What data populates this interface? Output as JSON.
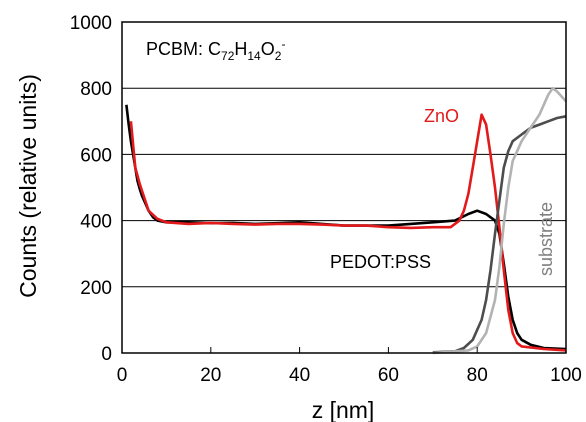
{
  "chart_data": {
    "type": "line",
    "title": "",
    "xlabel": "z [nm]",
    "ylabel": "Counts (relative units)",
    "xlim": [
      0,
      100
    ],
    "ylim": [
      0,
      1000
    ],
    "xticks": [
      0,
      20,
      40,
      60,
      80,
      100
    ],
    "yticks": [
      0,
      200,
      400,
      600,
      800,
      1000
    ],
    "grid": "horizontal",
    "annotations": {
      "species_prefix": "PCBM: C",
      "sub1": "72",
      "mid1": "H",
      "sub2": "14",
      "mid2": "O",
      "sub3": "2",
      "sup": "-",
      "zno_label": "ZnO",
      "pedot_label": "PEDOT:PSS",
      "substrate_label": "substrate"
    },
    "series": [
      {
        "name": "PEDOT:PSS",
        "color": "#000000",
        "points": [
          [
            1,
            750
          ],
          [
            1.5,
            690
          ],
          [
            2,
            640
          ],
          [
            2.5,
            600
          ],
          [
            3,
            560
          ],
          [
            3.5,
            520
          ],
          [
            4,
            495
          ],
          [
            4.5,
            475
          ],
          [
            5,
            460
          ],
          [
            5.5,
            445
          ],
          [
            6,
            430
          ],
          [
            7,
            410
          ],
          [
            8,
            400
          ],
          [
            10,
            395
          ],
          [
            15,
            395
          ],
          [
            20,
            392
          ],
          [
            25,
            393
          ],
          [
            30,
            390
          ],
          [
            35,
            392
          ],
          [
            40,
            395
          ],
          [
            45,
            390
          ],
          [
            50,
            385
          ],
          [
            55,
            385
          ],
          [
            60,
            385
          ],
          [
            65,
            390
          ],
          [
            70,
            395
          ],
          [
            75,
            400
          ],
          [
            78,
            420
          ],
          [
            80,
            430
          ],
          [
            82,
            420
          ],
          [
            84,
            400
          ],
          [
            85,
            360
          ],
          [
            86,
            270
          ],
          [
            87,
            170
          ],
          [
            88,
            100
          ],
          [
            89,
            60
          ],
          [
            90,
            40
          ],
          [
            92,
            25
          ],
          [
            95,
            15
          ],
          [
            100,
            12
          ]
        ]
      },
      {
        "name": "ZnO",
        "color": "#e31a1c",
        "points": [
          [
            2,
            700
          ],
          [
            3,
            560
          ],
          [
            4,
            510
          ],
          [
            5,
            470
          ],
          [
            6,
            430
          ],
          [
            8,
            405
          ],
          [
            10,
            395
          ],
          [
            15,
            390
          ],
          [
            20,
            393
          ],
          [
            25,
            390
          ],
          [
            30,
            388
          ],
          [
            35,
            390
          ],
          [
            40,
            390
          ],
          [
            45,
            388
          ],
          [
            50,
            385
          ],
          [
            55,
            385
          ],
          [
            60,
            380
          ],
          [
            65,
            378
          ],
          [
            70,
            380
          ],
          [
            74,
            380
          ],
          [
            76,
            400
          ],
          [
            77,
            430
          ],
          [
            78,
            480
          ],
          [
            79,
            560
          ],
          [
            80,
            640
          ],
          [
            81,
            720
          ],
          [
            82,
            690
          ],
          [
            83,
            600
          ],
          [
            84,
            500
          ],
          [
            85,
            380
          ],
          [
            86,
            250
          ],
          [
            87,
            130
          ],
          [
            88,
            60
          ],
          [
            89,
            30
          ],
          [
            90,
            20
          ],
          [
            95,
            12
          ],
          [
            100,
            8
          ]
        ]
      },
      {
        "name": "substrate-dark",
        "color": "#4d4d4d",
        "points": [
          [
            70,
            2
          ],
          [
            75,
            5
          ],
          [
            77,
            15
          ],
          [
            79,
            40
          ],
          [
            81,
            100
          ],
          [
            82,
            160
          ],
          [
            83,
            250
          ],
          [
            84,
            360
          ],
          [
            85,
            460
          ],
          [
            86,
            560
          ],
          [
            87,
            610
          ],
          [
            88,
            640
          ],
          [
            90,
            660
          ],
          [
            92,
            680
          ],
          [
            94,
            690
          ],
          [
            96,
            700
          ],
          [
            98,
            710
          ],
          [
            100,
            715
          ]
        ]
      },
      {
        "name": "substrate-light",
        "color": "#b3b3b3",
        "points": [
          [
            70,
            0
          ],
          [
            78,
            8
          ],
          [
            80,
            20
          ],
          [
            82,
            60
          ],
          [
            84,
            160
          ],
          [
            85,
            260
          ],
          [
            86,
            390
          ],
          [
            87,
            500
          ],
          [
            88,
            580
          ],
          [
            90,
            640
          ],
          [
            92,
            680
          ],
          [
            94,
            720
          ],
          [
            96,
            780
          ],
          [
            97,
            800
          ],
          [
            98,
            790
          ],
          [
            100,
            760
          ]
        ]
      }
    ]
  }
}
